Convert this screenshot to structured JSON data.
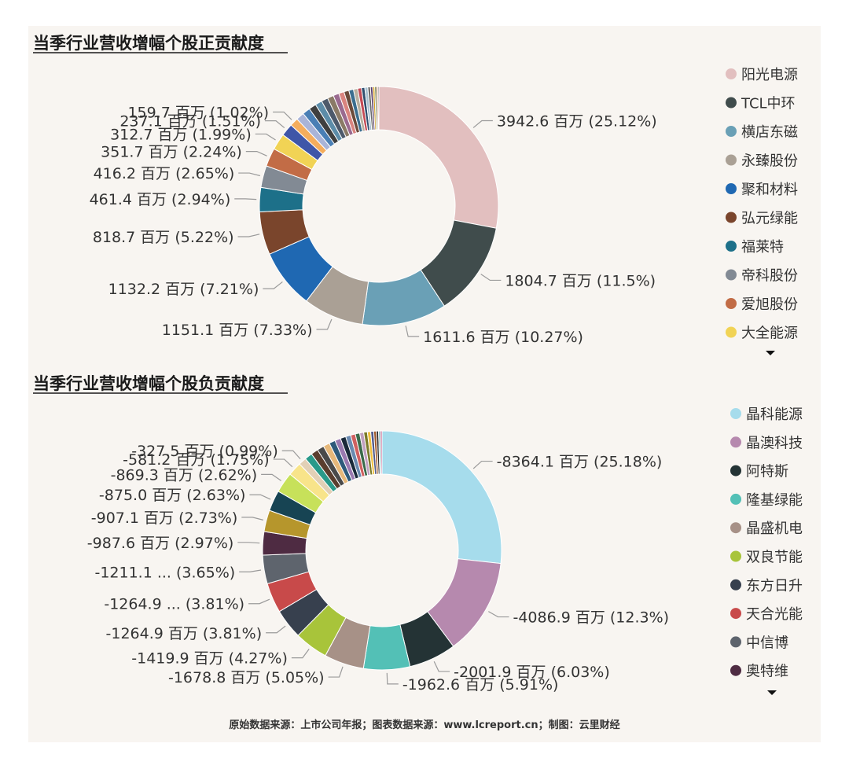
{
  "source": "原始数据来源：上市公司年报；图表数据来源：www.lcreport.cn；制图：云里财经",
  "chart_data": [
    {
      "type": "pie",
      "title": "当季行业营收增幅个股正贡献度",
      "legend_position": "right",
      "legend": [
        {
          "name": "阳光电源",
          "color": "#e2bfbf"
        },
        {
          "name": "TCL中环",
          "color": "#404c4c"
        },
        {
          "name": "横店东磁",
          "color": "#6aa0b6"
        },
        {
          "name": "永臻股份",
          "color": "#aaa095"
        },
        {
          "name": "聚和材料",
          "color": "#1f68b2"
        },
        {
          "name": "弘元绿能",
          "color": "#7a452c"
        },
        {
          "name": "福莱特",
          "color": "#1d7089"
        },
        {
          "name": "帝科股份",
          "color": "#828a94"
        },
        {
          "name": "爱旭股份",
          "color": "#c26c46"
        },
        {
          "name": "大全能源",
          "color": "#f1d355"
        }
      ],
      "slices": [
        {
          "value": 3942.6,
          "label": "3942.6 百万 (25.12%)",
          "color": "#e2bfbf"
        },
        {
          "value": 1804.7,
          "label": "1804.7 百万 (11.5%)",
          "color": "#404c4c"
        },
        {
          "value": 1611.6,
          "label": "1611.6 百万 (10.27%)",
          "color": "#6aa0b6"
        },
        {
          "value": 1151.1,
          "label": "1151.1 百万 (7.33%)",
          "color": "#aaa095"
        },
        {
          "value": 1132.2,
          "label": "1132.2 百万 (7.21%)",
          "color": "#1f68b2"
        },
        {
          "value": 818.7,
          "label": "818.7 百万 (5.22%)",
          "color": "#7a452c"
        },
        {
          "value": 461.4,
          "label": "461.4 百万 (2.94%)",
          "color": "#1d7089"
        },
        {
          "value": 416.2,
          "label": "416.2 百万 (2.65%)",
          "color": "#828a94"
        },
        {
          "value": 351.7,
          "label": "351.7 百万 (2.24%)",
          "color": "#c26c46"
        },
        {
          "value": 312.7,
          "label": "312.7 百万 (1.99%)",
          "color": "#f1d355"
        },
        {
          "value": 237.1,
          "label": "237.1 百万 (1.51%)",
          "color": "#3f56a8"
        },
        {
          "value": 159.7,
          "label": "159.7 百万 (1.02%)",
          "color": "#f4ad5d"
        },
        {
          "value": 154,
          "color": "#a9b4d8"
        },
        {
          "value": 148,
          "color": "#4a7fb5"
        },
        {
          "value": 140,
          "color": "#3f3f3f"
        },
        {
          "value": 132,
          "color": "#5c8ca8"
        },
        {
          "value": 125,
          "color": "#4d5a6b"
        },
        {
          "value": 118,
          "color": "#8a7a66"
        },
        {
          "value": 110,
          "color": "#9a6a8f"
        },
        {
          "value": 102,
          "color": "#d9847f"
        },
        {
          "value": 95,
          "color": "#6b4a3a"
        },
        {
          "value": 88,
          "color": "#3b6e8f"
        },
        {
          "value": 80,
          "color": "#b8b0a0"
        },
        {
          "value": 72,
          "color": "#c44a55"
        },
        {
          "value": 64,
          "color": "#2f4f6f"
        },
        {
          "value": 57,
          "color": "#a8c0d0"
        },
        {
          "value": 50,
          "color": "#6b6b6b"
        },
        {
          "value": 44,
          "color": "#5a3d6b"
        },
        {
          "value": 38,
          "color": "#d4a020"
        },
        {
          "value": 32,
          "color": "#556b2f"
        },
        {
          "value": 26,
          "color": "#b05030"
        },
        {
          "value": 20,
          "color": "#333333"
        }
      ]
    },
    {
      "type": "pie",
      "title": "当季行业营收增幅个股负贡献度",
      "legend_position": "right",
      "legend": [
        {
          "name": "晶科能源",
          "color": "#a6dcec"
        },
        {
          "name": "晶澳科技",
          "color": "#b689ae"
        },
        {
          "name": "阿特斯",
          "color": "#243335"
        },
        {
          "name": "隆基绿能",
          "color": "#53c0b6"
        },
        {
          "name": "晶盛机电",
          "color": "#a79187"
        },
        {
          "name": "双良节能",
          "color": "#a8c43a"
        },
        {
          "name": "东方日升",
          "color": "#37404e"
        },
        {
          "name": "天合光能",
          "color": "#c84a4a"
        },
        {
          "name": "中信博",
          "color": "#5e646d"
        },
        {
          "name": "奥特维",
          "color": "#4e2b42"
        }
      ],
      "slices": [
        {
          "value": 8364.1,
          "label": "-8364.1 百万 (25.18%)",
          "color": "#a6dcec"
        },
        {
          "value": 4086.9,
          "label": "-4086.9 百万 (12.3%)",
          "color": "#b689ae"
        },
        {
          "value": 2001.9,
          "label": "-2001.9 百万 (6.03%)",
          "color": "#243335"
        },
        {
          "value": 1962.6,
          "label": "-1962.6 百万 (5.91%)",
          "color": "#53c0b6"
        },
        {
          "value": 1678.8,
          "label": "-1678.8 百万 (5.05%)",
          "color": "#a79187"
        },
        {
          "value": 1419.9,
          "label": "-1419.9 百万 (4.27%)",
          "color": "#a8c43a"
        },
        {
          "value": 1264.9,
          "label": "-1264.9 百万 (3.81%)",
          "color": "#37404e"
        },
        {
          "value": 1264.9,
          "label": "-1264.9 ... (3.81%)",
          "color": "#c84a4a"
        },
        {
          "value": 1211.1,
          "label": "-1211.1 ... (3.65%)",
          "color": "#5e646d"
        },
        {
          "value": 987.6,
          "label": "-987.6 百万 (2.97%)",
          "color": "#4e2b42"
        },
        {
          "value": 907.1,
          "label": "-907.1 百万 (2.73%)",
          "color": "#b6962c"
        },
        {
          "value": 875.0,
          "label": "-875.0 百万 (2.63%)",
          "color": "#174453"
        },
        {
          "value": 869.3,
          "label": "-869.3 百万 (2.62%)",
          "color": "#c7e15a"
        },
        {
          "value": 581.2,
          "label": "-581.2 百万 (1.75%)",
          "color": "#f8e48a"
        },
        {
          "value": 327.5,
          "label": "-327.5 百万 (0.99%)",
          "color": "#e2d0b6"
        },
        {
          "value": 320,
          "color": "#2a9a8a"
        },
        {
          "value": 305,
          "color": "#5a3e2e"
        },
        {
          "value": 290,
          "color": "#4a4a4a"
        },
        {
          "value": 275,
          "color": "#e6b87a"
        },
        {
          "value": 260,
          "color": "#2e5a7a"
        },
        {
          "value": 245,
          "color": "#9a7ab0"
        },
        {
          "value": 230,
          "color": "#1a2a3a"
        },
        {
          "value": 215,
          "color": "#6a8ab0"
        },
        {
          "value": 200,
          "color": "#d06060"
        },
        {
          "value": 185,
          "color": "#3a6a4a"
        },
        {
          "value": 170,
          "color": "#c0a0c0"
        },
        {
          "value": 155,
          "color": "#7a7a2a"
        },
        {
          "value": 140,
          "color": "#f0c040"
        },
        {
          "value": 125,
          "color": "#505a8a"
        },
        {
          "value": 110,
          "color": "#a05a2a"
        },
        {
          "value": 95,
          "color": "#2a2a2a"
        },
        {
          "value": 80,
          "color": "#8ac0c0"
        },
        {
          "value": 65,
          "color": "#c05080"
        }
      ]
    }
  ]
}
